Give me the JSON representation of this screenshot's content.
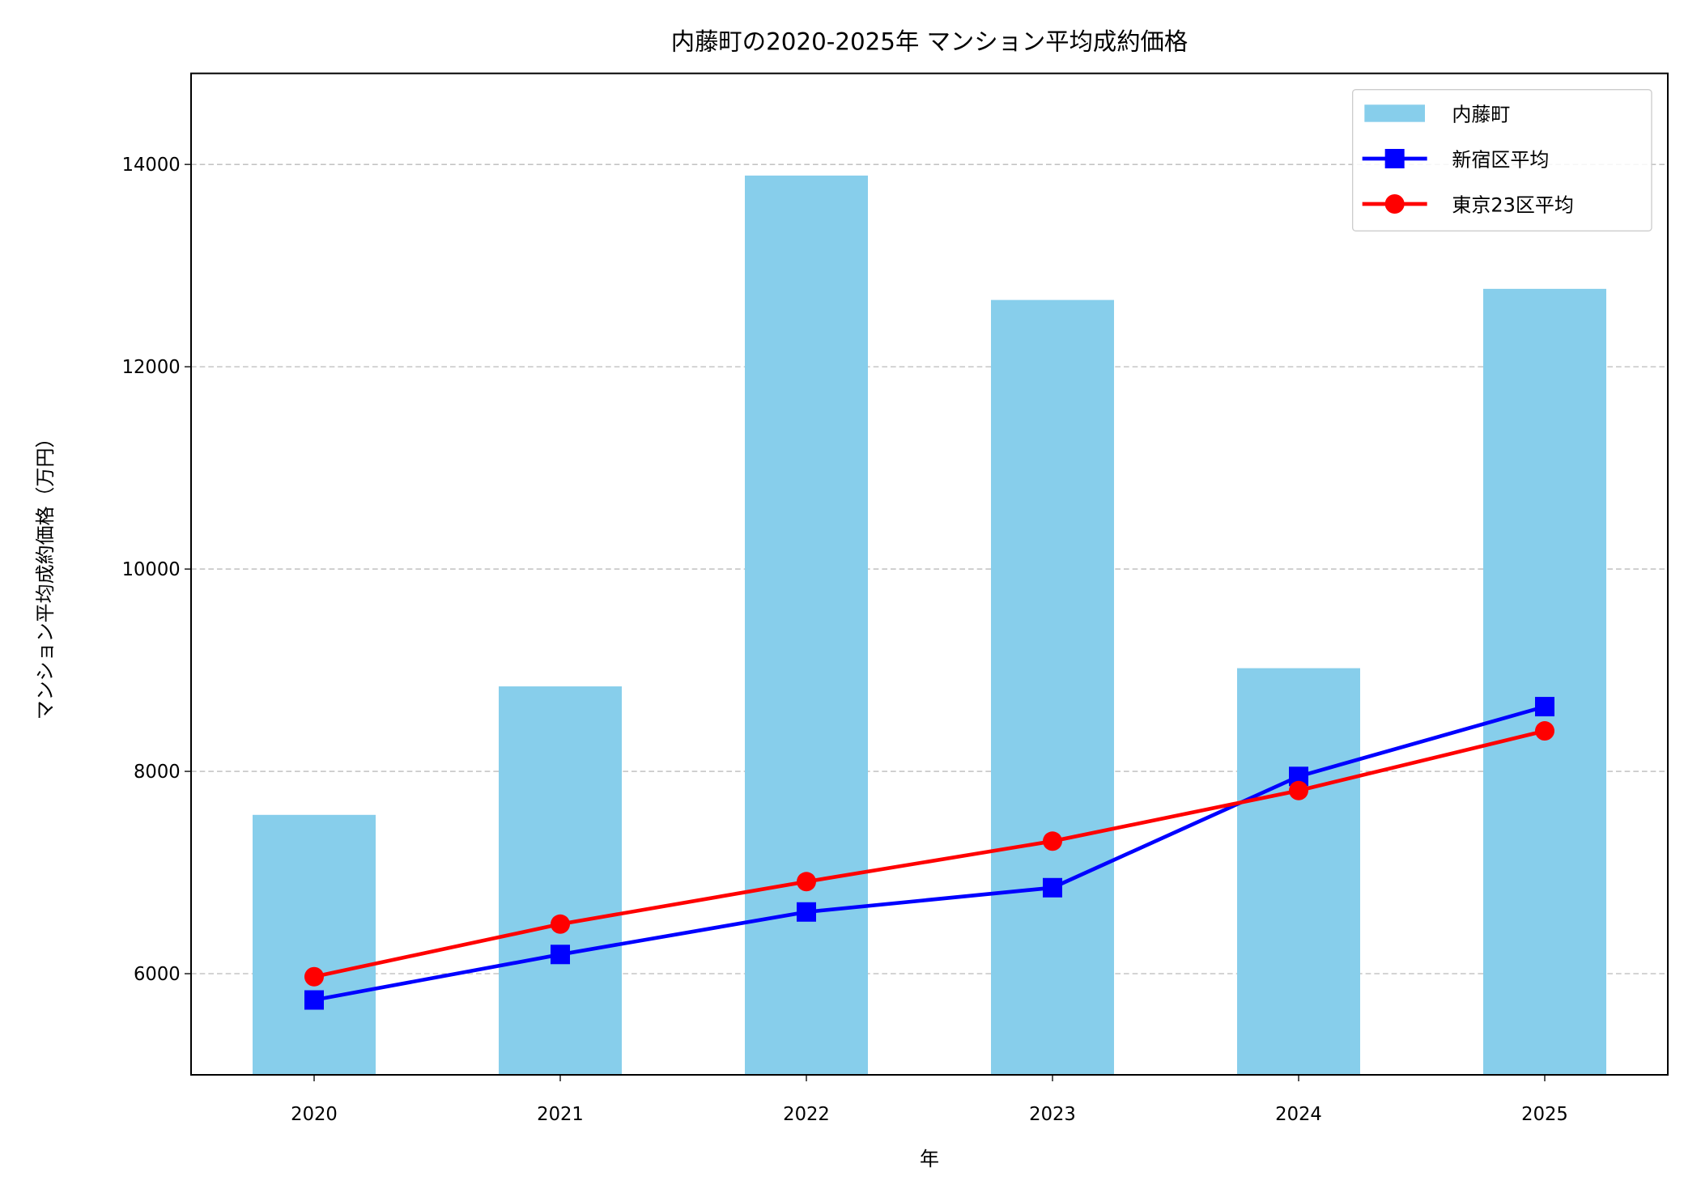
{
  "chart_data": {
    "type": "bar+line",
    "title": "内藤町の2020-2025年 マンション平均成約価格",
    "xlabel": "年",
    "ylabel": "マンション平均成約価格（万円）",
    "categories": [
      "2020",
      "2021",
      "2022",
      "2023",
      "2024",
      "2025"
    ],
    "ylim": [
      5000,
      14900
    ],
    "yticks": [
      6000,
      8000,
      10000,
      12000,
      14000
    ],
    "grid": "y-dashed",
    "legend_position": "top-right",
    "series": [
      {
        "name": "内藤町",
        "kind": "bar",
        "color": "#87ceeb",
        "values": [
          7570,
          8840,
          13890,
          12660,
          9020,
          12770
        ]
      },
      {
        "name": "新宿区平均",
        "kind": "line",
        "marker": "square",
        "color": "#0000ff",
        "values": [
          5740,
          6190,
          6610,
          6850,
          7950,
          8640
        ]
      },
      {
        "name": "東京23区平均",
        "kind": "line",
        "marker": "circle",
        "color": "#ff0000",
        "values": [
          5970,
          6490,
          6910,
          7310,
          7810,
          8400
        ]
      }
    ]
  }
}
